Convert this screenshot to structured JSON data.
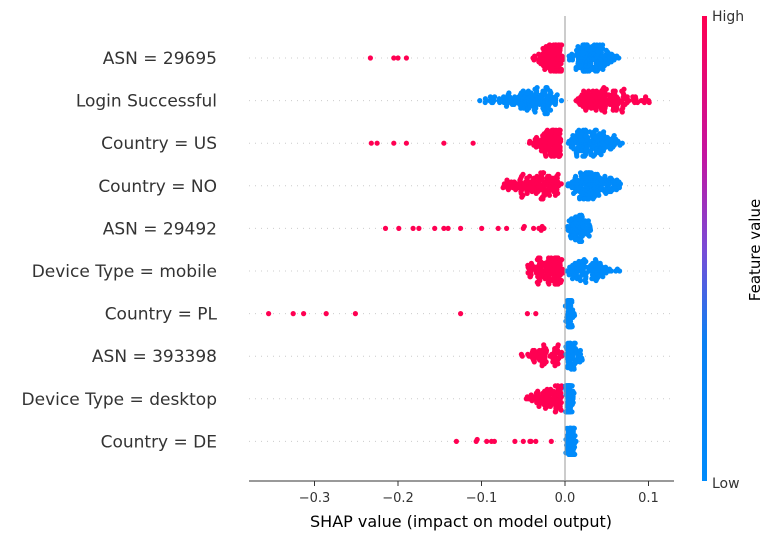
{
  "chart_data": {
    "type": "scatter",
    "subtype": "beeswarm",
    "xlabel": "SHAP value (impact on model output)",
    "xlim": [
      -0.375,
      0.13
    ],
    "xticks": [
      -0.3,
      -0.2,
      -0.1,
      0.0,
      0.1
    ],
    "xtick_labels": [
      "−0.3",
      "−0.2",
      "−0.1",
      "0.0",
      "0.1"
    ],
    "features": [
      "ASN = 29695",
      "Login Successful",
      "Country = US",
      "Country = NO",
      "ASN = 29492",
      "Device Type = mobile",
      "Country = PL",
      "ASN = 393398",
      "Device Type = desktop",
      "Country = DE"
    ],
    "colorbar": {
      "label": "Feature value",
      "high_label": "High",
      "low_label": "Low",
      "high_color": "#ff0052",
      "low_color": "#008bfb"
    },
    "grid": false,
    "series": [
      {
        "feature": "ASN = 29695",
        "high": {
          "range": [
            -0.233,
            -0.003
          ],
          "dense_from": -0.04,
          "n": 110,
          "outliers": [
            -0.233,
            -0.205,
            -0.2,
            -0.19
          ]
        },
        "low": {
          "range": [
            0.002,
            0.067
          ],
          "center": 0.025,
          "n": 160
        }
      },
      {
        "feature": "Login Successful",
        "high": {
          "range": [
            0.01,
            0.108
          ],
          "center": 0.035,
          "n": 150
        },
        "low": {
          "range": [
            -0.102,
            -0.002
          ],
          "center": -0.025,
          "n": 150,
          "outliers": [
            -0.102,
            -0.085
          ]
        }
      },
      {
        "feature": "Country = US",
        "high": {
          "range": [
            -0.232,
            -0.005
          ],
          "dense_from": -0.045,
          "n": 110,
          "outliers": [
            -0.232,
            -0.225,
            -0.205,
            -0.19,
            -0.145,
            -0.11
          ]
        },
        "low": {
          "range": [
            0.003,
            0.08
          ],
          "center": 0.025,
          "n": 150
        }
      },
      {
        "feature": "Country = NO",
        "high": {
          "range": [
            -0.083,
            -0.002
          ],
          "center": -0.02,
          "n": 140
        },
        "low": {
          "range": [
            0.002,
            0.078
          ],
          "center": 0.02,
          "n": 160
        }
      },
      {
        "feature": "ASN = 29492",
        "high": {
          "range": [
            -0.215,
            -0.01
          ],
          "n": 18,
          "outliers": [
            -0.215,
            -0.175,
            -0.145,
            -0.14,
            -0.125,
            -0.08,
            -0.07,
            -0.05
          ]
        },
        "low": {
          "range": [
            0.002,
            0.035
          ],
          "center": 0.015,
          "n": 80
        }
      },
      {
        "feature": "Device Type = mobile",
        "high": {
          "range": [
            -0.05,
            -0.001
          ],
          "center": -0.008,
          "n": 120
        },
        "low": {
          "range": [
            0.001,
            0.067
          ],
          "center": 0.015,
          "n": 100
        }
      },
      {
        "feature": "Country = PL",
        "high": {
          "range": [
            -0.355,
            -0.035
          ],
          "n": 8,
          "outliers": [
            -0.355,
            -0.313,
            -0.286,
            -0.251,
            -0.125,
            -0.045,
            -0.035
          ]
        },
        "low": {
          "range": [
            0.0,
            0.012
          ],
          "center": 0.005,
          "n": 60
        }
      },
      {
        "feature": "ASN = 393398",
        "high": {
          "range": [
            -0.055,
            -0.001
          ],
          "center": -0.01,
          "n": 70
        },
        "low": {
          "range": [
            0.0,
            0.022
          ],
          "center": 0.005,
          "n": 60
        }
      },
      {
        "feature": "Device Type = desktop",
        "high": {
          "range": [
            -0.048,
            -0.001
          ],
          "center": -0.008,
          "n": 90
        },
        "low": {
          "range": [
            0.0,
            0.012
          ],
          "center": 0.004,
          "n": 80
        }
      },
      {
        "feature": "Country = DE",
        "high": {
          "range": [
            -0.13,
            -0.01
          ],
          "n": 12,
          "outliers": [
            -0.13,
            -0.088,
            -0.06,
            -0.05,
            -0.042,
            -0.035
          ]
        },
        "low": {
          "range": [
            0.0,
            0.015
          ],
          "center": 0.005,
          "n": 70
        }
      }
    ]
  }
}
